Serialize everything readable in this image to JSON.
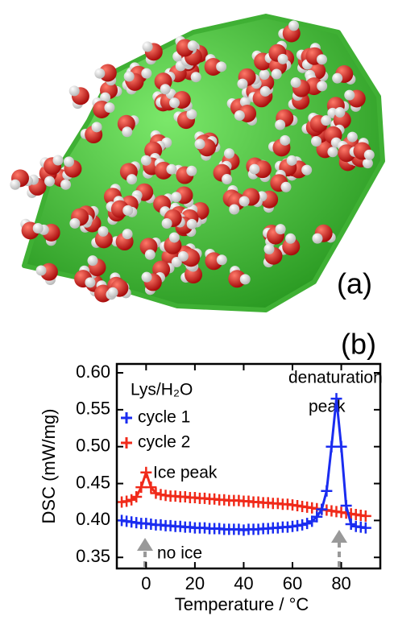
{
  "panels": [
    "(a)",
    "(b)"
  ],
  "chart_data": {
    "type": "line",
    "xlabel": "Temperature / °C",
    "ylabel": "DSC (mW/mg)",
    "legend_title": "Lys/H₂O",
    "annotations": [
      "Ice peak",
      "denaturation",
      "peak",
      "no ice"
    ],
    "x": [
      -10,
      -8,
      -6,
      -4,
      -2,
      0,
      2,
      4,
      6,
      8,
      10,
      12,
      14,
      16,
      18,
      20,
      22,
      24,
      26,
      28,
      30,
      32,
      34,
      36,
      38,
      40,
      42,
      44,
      46,
      48,
      50,
      52,
      54,
      56,
      58,
      60,
      62,
      64,
      66,
      68,
      70,
      72,
      74,
      76,
      78,
      80,
      82,
      84,
      86,
      88,
      90
    ],
    "series": [
      {
        "name": "cycle 1",
        "color": "#1a2cf0",
        "values": [
          0.4,
          0.399,
          0.398,
          0.397,
          0.396,
          0.396,
          0.395,
          0.394,
          0.394,
          0.393,
          0.393,
          0.392,
          0.392,
          0.391,
          0.391,
          0.39,
          0.39,
          0.39,
          0.389,
          0.389,
          0.389,
          0.388,
          0.388,
          0.388,
          0.388,
          0.387,
          0.388,
          0.388,
          0.388,
          0.389,
          0.389,
          0.39,
          0.39,
          0.391,
          0.391,
          0.392,
          0.393,
          0.394,
          0.396,
          0.399,
          0.405,
          0.415,
          0.44,
          0.5,
          0.565,
          0.5,
          0.42,
          0.395,
          0.392,
          0.391,
          0.39
        ]
      },
      {
        "name": "cycle 2",
        "color": "#f02a1a",
        "values": [
          0.425,
          0.426,
          0.428,
          0.432,
          0.445,
          0.465,
          0.445,
          0.437,
          0.435,
          0.434,
          0.433,
          0.433,
          0.432,
          0.432,
          0.431,
          0.431,
          0.43,
          0.43,
          0.429,
          0.429,
          0.428,
          0.428,
          0.427,
          0.427,
          0.427,
          0.426,
          0.426,
          0.425,
          0.425,
          0.424,
          0.424,
          0.423,
          0.423,
          0.422,
          0.422,
          0.421,
          0.42,
          0.419,
          0.418,
          0.417,
          0.416,
          0.415,
          0.414,
          0.413,
          0.412,
          0.411,
          0.41,
          0.409,
          0.408,
          0.407,
          0.406
        ]
      }
    ],
    "xlim": [
      -12,
      96
    ],
    "xticks": [
      0,
      20,
      40,
      60,
      80
    ],
    "ylim": [
      0.335,
      0.612
    ],
    "yticks": [
      0.35,
      {
        "value": 0.4,
        "label": "0.40"
      },
      0.45,
      {
        "value": 0.5,
        "label": "0.50"
      },
      0.55,
      {
        "value": 0.6,
        "label": "0.60"
      }
    ]
  }
}
